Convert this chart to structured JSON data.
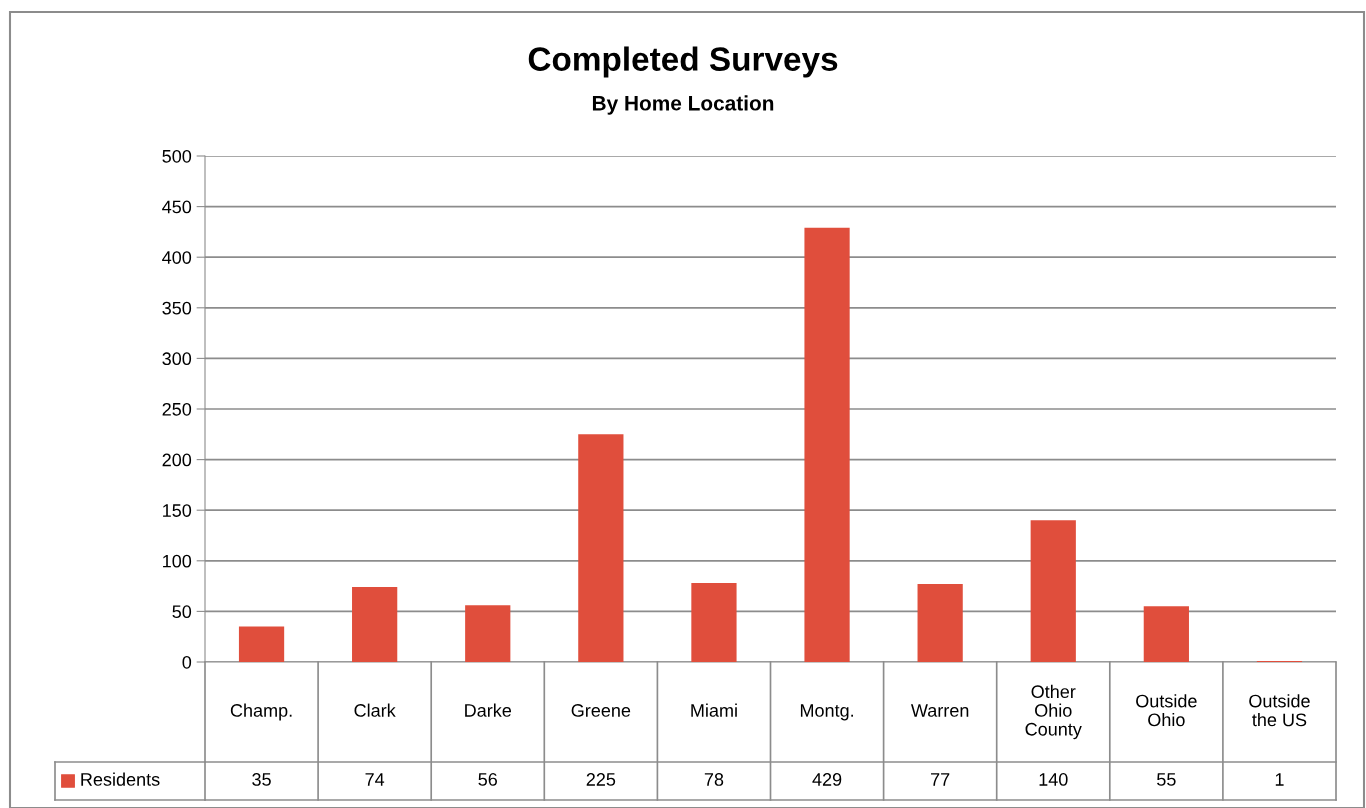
{
  "chart_data": {
    "type": "bar",
    "title": "Completed Surveys",
    "subtitle": "By Home Location",
    "categories": [
      "Champ.",
      "Clark",
      "Darke",
      "Greene",
      "Miami",
      "Montg.",
      "Warren",
      "Other\nOhio\nCounty",
      "Outside\nOhio",
      "Outside\nthe US"
    ],
    "series": [
      {
        "name": "Residents",
        "color": "#e04e3c",
        "values": [
          35,
          74,
          56,
          225,
          78,
          429,
          77,
          140,
          55,
          1
        ]
      }
    ],
    "ylim": [
      0,
      500
    ],
    "yticks": [
      0,
      50,
      100,
      150,
      200,
      250,
      300,
      350,
      400,
      450,
      500
    ],
    "grid": "y",
    "legend": "bottom",
    "data_labels": true
  }
}
